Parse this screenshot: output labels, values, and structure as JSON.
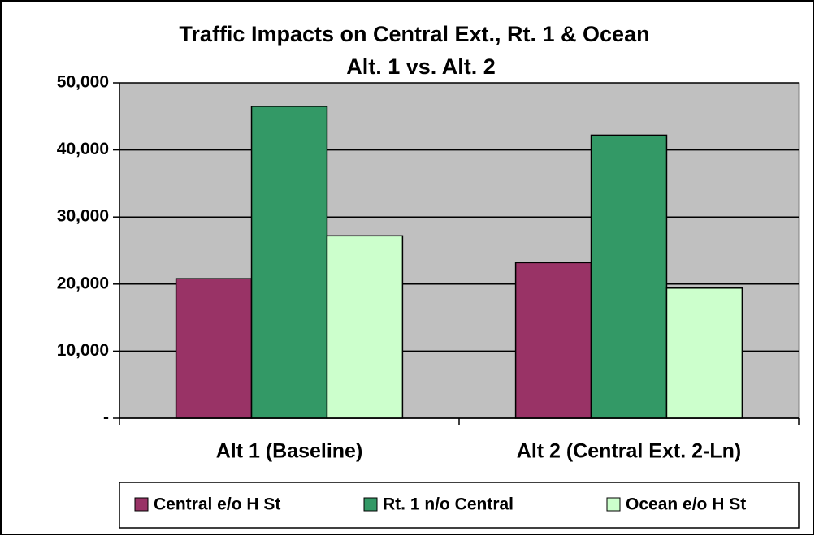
{
  "chart_data": {
    "type": "bar",
    "title": "Traffic Impacts on Central Ext., Rt. 1 & Ocean",
    "subtitle": "Alt. 1 vs. Alt. 2",
    "categories": [
      "Alt 1 (Baseline)",
      "Alt 2 (Central Ext. 2-Ln)"
    ],
    "series": [
      {
        "name": "Central e/o H St",
        "color": "#993366",
        "values": [
          20800,
          23200
        ]
      },
      {
        "name": "Rt. 1 n/o Central",
        "color": "#339966",
        "values": [
          46500,
          42200
        ]
      },
      {
        "name": "Ocean e/o H St",
        "color": "#ccffcc",
        "values": [
          27200,
          19400
        ]
      }
    ],
    "ylim": [
      0,
      50000
    ],
    "yticks": [
      {
        "value": 0,
        "label": "-"
      },
      {
        "value": 10000,
        "label": "10,000"
      },
      {
        "value": 20000,
        "label": "20,000"
      },
      {
        "value": 30000,
        "label": "30,000"
      },
      {
        "value": 40000,
        "label": "40,000"
      },
      {
        "value": 50000,
        "label": "50,000"
      }
    ],
    "grid": true,
    "legend": "bottom"
  }
}
